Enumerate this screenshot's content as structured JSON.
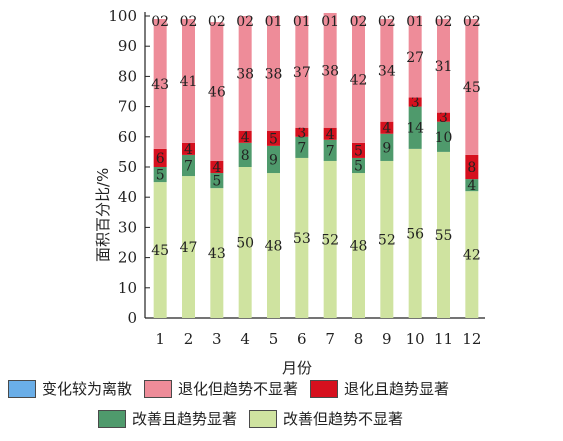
{
  "chart_data": {
    "type": "bar",
    "stacked": true,
    "categories": [
      "1",
      "2",
      "3",
      "4",
      "5",
      "6",
      "7",
      "8",
      "9",
      "10",
      "11",
      "12"
    ],
    "xlabel": "月份",
    "ylabel": "面积百分比/%",
    "ylim": [
      0,
      100
    ],
    "yticks": [
      "0",
      "10",
      "20",
      "30",
      "40",
      "50",
      "60",
      "70",
      "80",
      "90",
      "100"
    ],
    "grid": false,
    "legend_position": "bottom",
    "series": [
      {
        "name": "改善但趋势不显著",
        "color": "#cfe3a0",
        "values": [
          45,
          47,
          43,
          50,
          48,
          53,
          52,
          48,
          52,
          56,
          55,
          42
        ]
      },
      {
        "name": "改善且趋势显著",
        "color": "#4f9a6c",
        "values": [
          5,
          7,
          5,
          8,
          9,
          7,
          7,
          5,
          9,
          14,
          10,
          4
        ]
      },
      {
        "name": "退化且趋势显著",
        "color": "#d6101e",
        "values": [
          6,
          4,
          4,
          4,
          5,
          3,
          4,
          5,
          4,
          3,
          3,
          8
        ]
      },
      {
        "name": "退化但趋势不显著",
        "color": "#ee8c99",
        "values": [
          43,
          41,
          46,
          38,
          38,
          37,
          38,
          42,
          34,
          27,
          31,
          45
        ]
      },
      {
        "name": "变化较为离散",
        "color": "#6aaee8",
        "values": [
          0,
          0,
          0,
          0,
          0,
          0,
          0,
          0,
          0,
          0,
          0,
          0
        ]
      }
    ],
    "top_labels": [
      "02",
      "02",
      "02",
      "02",
      "01",
      "01",
      "01",
      "02",
      "02",
      "01",
      "02",
      "02"
    ],
    "legend_rows": [
      [
        "变化较为离散",
        "退化但趋势不显著",
        "退化且趋势显著"
      ],
      [
        "改善且趋势显著",
        "改善但趋势不显著"
      ]
    ]
  }
}
